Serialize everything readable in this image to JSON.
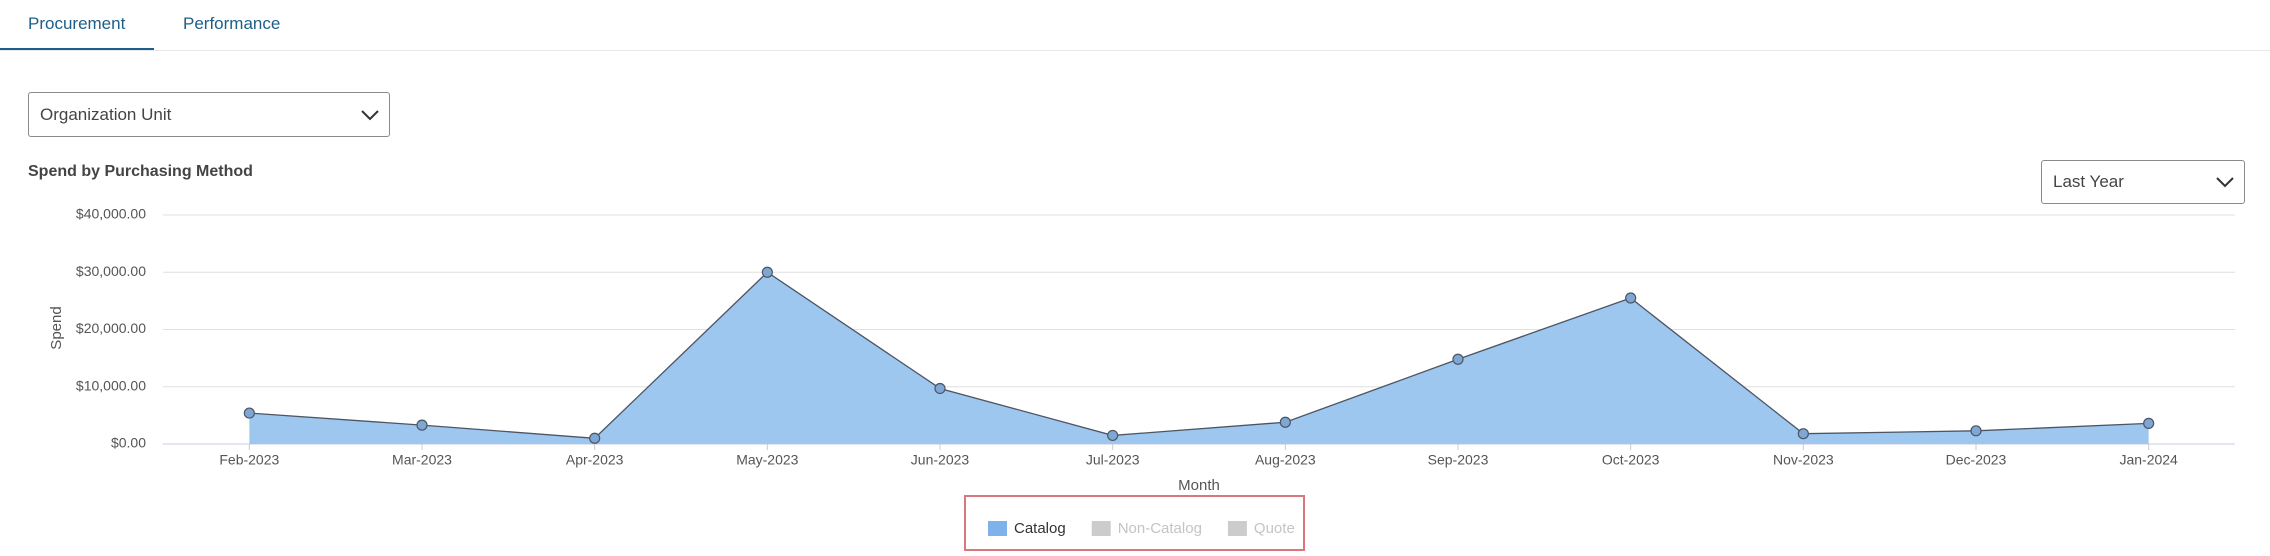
{
  "tabs": [
    "Procurement",
    "Performance"
  ],
  "filters": {
    "organization_unit": "Organization Unit",
    "period": "Last Year"
  },
  "chart_data": {
    "type": "area",
    "title": "Spend by Purchasing Method",
    "x_label": "Month",
    "y_label": "Spend",
    "categories": [
      "Feb-2023",
      "Mar-2023",
      "Apr-2023",
      "May-2023",
      "Jun-2023",
      "Jul-2023",
      "Aug-2023",
      "Sep-2023",
      "Oct-2023",
      "Nov-2023",
      "Dec-2023",
      "Jan-2024"
    ],
    "series": [
      {
        "name": "Catalog",
        "color": "#9ec7f0",
        "values": [
          5400,
          3300,
          1000,
          30000,
          9700,
          1500,
          3800,
          14800,
          25500,
          1800,
          2300,
          3600
        ]
      },
      {
        "name": "Non-Catalog",
        "color": "#cccccc",
        "visible": false
      },
      {
        "name": "Quote",
        "color": "#cccccc",
        "visible": false
      }
    ],
    "ylim": [
      0,
      40000
    ],
    "yticks": [
      {
        "value": 0,
        "label": "$0.00"
      },
      {
        "value": 10000,
        "label": "$10,000.00"
      },
      {
        "value": 20000,
        "label": "$20,000.00"
      },
      {
        "value": 30000,
        "label": "$30,000.00"
      },
      {
        "value": 40000,
        "label": "$40,000.00"
      }
    ],
    "grid": true,
    "legend": "bottom"
  }
}
